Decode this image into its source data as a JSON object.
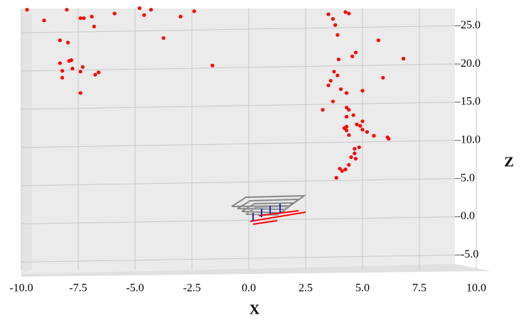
{
  "chart_data": {
    "type": "scatter",
    "x_label": "X",
    "z_label": "Z",
    "color": "#ff0000",
    "grid": true,
    "xlim": [
      -10,
      10
    ],
    "xticks": [
      {
        "value": -10,
        "label": "-10.0"
      },
      {
        "value": -7.5,
        "label": "-7.5"
      },
      {
        "value": -5,
        "label": "-5.0"
      },
      {
        "value": -2.5,
        "label": "-2.5"
      },
      {
        "value": 0,
        "label": "0.0"
      },
      {
        "value": 2.5,
        "label": "2.5"
      },
      {
        "value": 5,
        "label": "5.0"
      },
      {
        "value": 7.5,
        "label": "7.5"
      },
      {
        "value": 10,
        "label": "10.0"
      }
    ],
    "zlim": [
      -5.8,
      28
    ],
    "zticks": [
      {
        "value": -5,
        "label": "-5.0"
      },
      {
        "value": 0,
        "label": "0.0"
      },
      {
        "value": 5,
        "label": "5.0"
      },
      {
        "value": 10,
        "label": "10.0"
      },
      {
        "value": 15,
        "label": "15.0"
      },
      {
        "value": 20,
        "label": "20.0"
      },
      {
        "value": 25,
        "label": "25.0"
      }
    ],
    "x": [
      -9.75,
      -9.0,
      -8.0,
      -7.4,
      -7.25,
      -6.9,
      -6.8,
      -5.9,
      -4.8,
      -4.6,
      -4.3,
      -3.0,
      -2.4,
      -3.75,
      -1.6,
      -8.3,
      -7.95,
      -8.3,
      -7.9,
      -7.8,
      -8.2,
      -8.2,
      -7.75,
      -7.4,
      -7.3,
      -6.75,
      -6.6,
      -7.4,
      3.5,
      3.7,
      4.25,
      4.4,
      3.8,
      3.9,
      5.7,
      4.7,
      4.55,
      3.95,
      6.8,
      3.75,
      3.9,
      5.9,
      3.6,
      3.5,
      4.05,
      4.3,
      5.0,
      3.7,
      3.25,
      4.3,
      4.4,
      4.6,
      4.3,
      5.0,
      4.75,
      4.9,
      4.3,
      4.2,
      4.3,
      5.0,
      5.2,
      5.5,
      4.4,
      6.1,
      6.15,
      4.85,
      4.65,
      4.65,
      4.5,
      4.7,
      4.4,
      4.0,
      4.1,
      4.25,
      3.85
    ],
    "z": [
      27.1,
      25.7,
      27.1,
      26.0,
      26.0,
      26.2,
      24.9,
      26.6,
      27.3,
      26.4,
      27.1,
      26.2,
      26.9,
      23.4,
      19.8,
      23.1,
      22.8,
      20.1,
      20.4,
      20.5,
      19.1,
      18.2,
      19.4,
      19.0,
      19.6,
      18.6,
      18.9,
      16.2,
      26.5,
      25.9,
      26.8,
      26.6,
      25.1,
      23.8,
      23.1,
      21.5,
      21.0,
      20.6,
      20.7,
      19.0,
      18.5,
      18.2,
      17.8,
      17.2,
      16.7,
      16.2,
      16.5,
      15.1,
      14.0,
      14.3,
      14.0,
      13.3,
      13.1,
      12.5,
      12.1,
      11.9,
      11.8,
      11.6,
      11.3,
      11.4,
      11.1,
      10.6,
      10.7,
      10.4,
      10.2,
      9.1,
      8.9,
      8.3,
      7.8,
      7.6,
      6.8,
      6.3,
      6.0,
      6.2,
      5.1
    ]
  }
}
